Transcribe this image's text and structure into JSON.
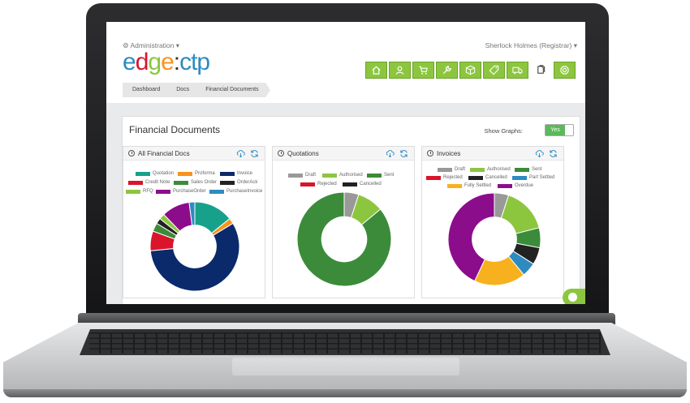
{
  "header": {
    "admin_label": "Administration",
    "user_label": "Sherlock Holmes (Registrar)",
    "logo_part1": "edge",
    "logo_sep": ":",
    "logo_part2": "ctp",
    "nav_icons": [
      "home-icon",
      "user-icon",
      "cart-icon",
      "wrench-icon",
      "box-icon",
      "tag-icon",
      "truck-icon",
      "documents-icon",
      "lifebuoy-icon"
    ],
    "breadcrumb": [
      "Dashboard",
      "Docs",
      "Financial Documents"
    ],
    "colors": {
      "accent": "#8cc63f"
    }
  },
  "panel": {
    "title": "Financial Documents",
    "show_graphs_label": "Show Graphs:",
    "toggle_value": "Yes"
  },
  "cards": [
    {
      "title": "All Financial Docs",
      "legend": [
        {
          "label": "Quotation",
          "color": "#17a18a"
        },
        {
          "label": "Proforma",
          "color": "#f7931e"
        },
        {
          "label": "Invoice",
          "color": "#0b2a6b"
        },
        {
          "label": "Credit Note",
          "color": "#d9142b"
        },
        {
          "label": "Sales Order",
          "color": "#3c8b3a"
        },
        {
          "label": "OrderAck",
          "color": "#222222"
        },
        {
          "label": "RFQ",
          "color": "#8cc63f"
        },
        {
          "label": "PurchaseOrder",
          "color": "#8c0d8c"
        },
        {
          "label": "PurchaseInvoice",
          "color": "#2e8bc0"
        }
      ],
      "slices": [
        {
          "label": "Quotation",
          "value": 14,
          "color": "#17a18a"
        },
        {
          "label": "Proforma",
          "value": 2,
          "color": "#f7931e"
        },
        {
          "label": "Invoice",
          "value": 56,
          "color": "#0b2a6b"
        },
        {
          "label": "Credit Note",
          "value": 7,
          "color": "#d9142b"
        },
        {
          "label": "Sales Order",
          "value": 3,
          "color": "#3c8b3a"
        },
        {
          "label": "OrderAck",
          "value": 2,
          "color": "#222222"
        },
        {
          "label": "RFQ",
          "value": 2,
          "color": "#8cc63f"
        },
        {
          "label": "PurchaseOrder",
          "value": 10,
          "color": "#8c0d8c"
        },
        {
          "label": "PurchaseInvoice",
          "value": 2,
          "color": "#2e8bc0"
        }
      ]
    },
    {
      "title": "Quotations",
      "legend": [
        {
          "label": "Draft",
          "color": "#999999"
        },
        {
          "label": "Authorised",
          "color": "#8cc63f"
        },
        {
          "label": "Sent",
          "color": "#3c8b3a"
        },
        {
          "label": "Rejected",
          "color": "#d9142b"
        },
        {
          "label": "Cancelled",
          "color": "#222222"
        }
      ],
      "slices": [
        {
          "label": "Draft",
          "value": 5,
          "color": "#999999"
        },
        {
          "label": "Authorised",
          "value": 9,
          "color": "#8cc63f"
        },
        {
          "label": "Sent",
          "value": 86,
          "color": "#3c8b3a"
        }
      ]
    },
    {
      "title": "Invoices",
      "legend": [
        {
          "label": "Draft",
          "color": "#999999"
        },
        {
          "label": "Authorised",
          "color": "#8cc63f"
        },
        {
          "label": "Sent",
          "color": "#3c8b3a"
        },
        {
          "label": "Rejected",
          "color": "#d9142b"
        },
        {
          "label": "Cancelled",
          "color": "#222222"
        },
        {
          "label": "Part Settled",
          "color": "#2e8bc0"
        },
        {
          "label": "Fully Settled",
          "color": "#f7b11e"
        },
        {
          "label": "Overdue",
          "color": "#8c0d8c"
        }
      ],
      "slices": [
        {
          "label": "Draft",
          "value": 5,
          "color": "#999999"
        },
        {
          "label": "Authorised",
          "value": 16,
          "color": "#8cc63f"
        },
        {
          "label": "Sent",
          "value": 7,
          "color": "#3c8b3a"
        },
        {
          "label": "Cancelled",
          "value": 6,
          "color": "#222222"
        },
        {
          "label": "Part Settled",
          "value": 5,
          "color": "#2e8bc0"
        },
        {
          "label": "Fully Settled",
          "value": 18,
          "color": "#f7b11e"
        },
        {
          "label": "Overdue",
          "value": 43,
          "color": "#8c0d8c"
        }
      ]
    }
  ]
}
